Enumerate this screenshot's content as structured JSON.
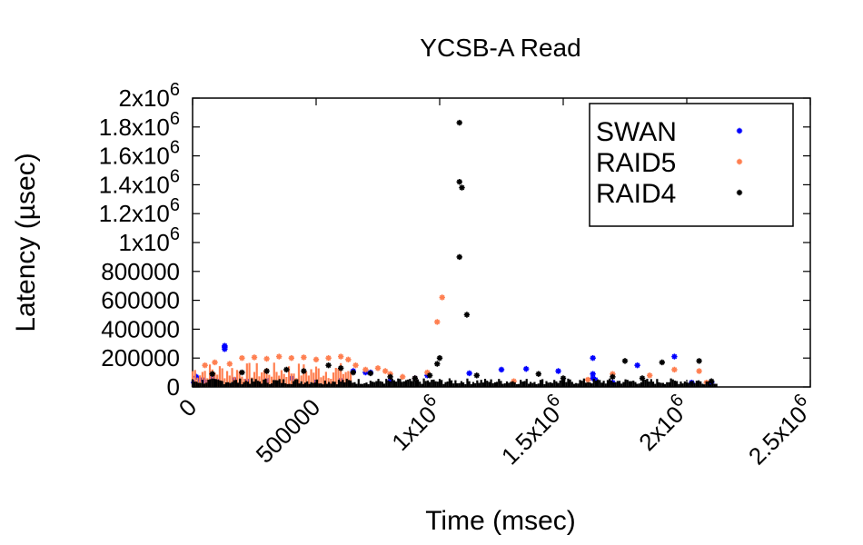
{
  "chart_data": {
    "type": "scatter",
    "title": "YCSB-A Read",
    "xlabel": "Time (msec)",
    "ylabel": "Latency (µsec)",
    "xlim": [
      0,
      2500000
    ],
    "ylim": [
      0,
      2000000
    ],
    "x_ticks": [
      {
        "value": 0,
        "label": "0"
      },
      {
        "value": 500000,
        "label": "500000"
      },
      {
        "value": 1000000,
        "label": "1x10",
        "exp": "6"
      },
      {
        "value": 1500000,
        "label": "1.5x10",
        "exp": "6"
      },
      {
        "value": 2000000,
        "label": "2x10",
        "exp": "6"
      },
      {
        "value": 2500000,
        "label": "2.5x10",
        "exp": "6"
      }
    ],
    "y_ticks": [
      {
        "value": 0,
        "label": "0"
      },
      {
        "value": 200000,
        "label": "200000"
      },
      {
        "value": 400000,
        "label": "400000"
      },
      {
        "value": 600000,
        "label": "600000"
      },
      {
        "value": 800000,
        "label": "800000"
      },
      {
        "value": 1000000,
        "label": "1x10",
        "exp": "6"
      },
      {
        "value": 1200000,
        "label": "1.2x10",
        "exp": "6"
      },
      {
        "value": 1400000,
        "label": "1.4x10",
        "exp": "6"
      },
      {
        "value": 1600000,
        "label": "1.6x10",
        "exp": "6"
      },
      {
        "value": 1800000,
        "label": "1.8x10",
        "exp": "6"
      },
      {
        "value": 2000000,
        "label": "2x10",
        "exp": "6"
      }
    ],
    "grid": false,
    "legend_position": "top-right",
    "series": [
      {
        "name": "SWAN",
        "color": "#0000ff",
        "points": [
          [
            5000,
            30000
          ],
          [
            15000,
            70000
          ],
          [
            30000,
            50000
          ],
          [
            45000,
            45000
          ],
          [
            60000,
            30000
          ],
          [
            80000,
            60000
          ],
          [
            100000,
            40000
          ],
          [
            130000,
            262000
          ],
          [
            130000,
            275000
          ],
          [
            130000,
            285000
          ],
          [
            170000,
            50000
          ],
          [
            220000,
            40000
          ],
          [
            300000,
            45000
          ],
          [
            400000,
            60000
          ],
          [
            500000,
            35000
          ],
          [
            600000,
            45000
          ],
          [
            650000,
            110000
          ],
          [
            700000,
            100000
          ],
          [
            720000,
            100000
          ],
          [
            800000,
            40000
          ],
          [
            900000,
            60000
          ],
          [
            950000,
            80000
          ],
          [
            1120000,
            95000
          ],
          [
            1250000,
            120000
          ],
          [
            1350000,
            125000
          ],
          [
            1480000,
            110000
          ],
          [
            1620000,
            200000
          ],
          [
            1620000,
            90000
          ],
          [
            1620000,
            60000
          ],
          [
            1630000,
            50000
          ],
          [
            1700000,
            30000
          ],
          [
            1800000,
            150000
          ],
          [
            1950000,
            210000
          ],
          [
            2020000,
            30000
          ],
          [
            2100000,
            30000
          ]
        ]
      },
      {
        "name": "RAID5",
        "color": "#ff7f50",
        "band": {
          "x_start": 0,
          "x_end": 640000,
          "y_max": 170000,
          "step": 10000
        },
        "points": [
          [
            50000,
            150000
          ],
          [
            90000,
            170000
          ],
          [
            150000,
            160000
          ],
          [
            200000,
            200000
          ],
          [
            250000,
            205000
          ],
          [
            300000,
            195000
          ],
          [
            350000,
            210000
          ],
          [
            400000,
            200000
          ],
          [
            450000,
            205000
          ],
          [
            500000,
            190000
          ],
          [
            550000,
            200000
          ],
          [
            600000,
            210000
          ],
          [
            630000,
            190000
          ],
          [
            660000,
            150000
          ],
          [
            700000,
            120000
          ],
          [
            750000,
            130000
          ],
          [
            780000,
            110000
          ],
          [
            800000,
            90000
          ],
          [
            850000,
            70000
          ],
          [
            900000,
            60000
          ],
          [
            950000,
            100000
          ],
          [
            990000,
            450000
          ],
          [
            1010000,
            620000
          ],
          [
            1300000,
            40000
          ],
          [
            1600000,
            50000
          ],
          [
            1700000,
            90000
          ],
          [
            1850000,
            80000
          ],
          [
            1950000,
            120000
          ],
          [
            2050000,
            110000
          ],
          [
            2080000,
            30000
          ]
        ]
      },
      {
        "name": "RAID4",
        "color": "#000000",
        "band": {
          "x_start": 0,
          "x_end": 2120000,
          "y_max": 60000,
          "step": 8000
        },
        "points": [
          [
            80000,
            90000
          ],
          [
            200000,
            100000
          ],
          [
            300000,
            110000
          ],
          [
            380000,
            120000
          ],
          [
            450000,
            110000
          ],
          [
            550000,
            150000
          ],
          [
            600000,
            130000
          ],
          [
            650000,
            100000
          ],
          [
            720000,
            95000
          ],
          [
            800000,
            70000
          ],
          [
            900000,
            60000
          ],
          [
            960000,
            80000
          ],
          [
            990000,
            160000
          ],
          [
            1000000,
            200000
          ],
          [
            1080000,
            1830000
          ],
          [
            1080000,
            1420000
          ],
          [
            1090000,
            1380000
          ],
          [
            1080000,
            900000
          ],
          [
            1110000,
            500000
          ],
          [
            1150000,
            80000
          ],
          [
            1400000,
            90000
          ],
          [
            1500000,
            60000
          ],
          [
            1700000,
            70000
          ],
          [
            1750000,
            180000
          ],
          [
            1820000,
            60000
          ],
          [
            1900000,
            170000
          ],
          [
            2050000,
            180000
          ],
          [
            2100000,
            40000
          ]
        ]
      }
    ]
  }
}
